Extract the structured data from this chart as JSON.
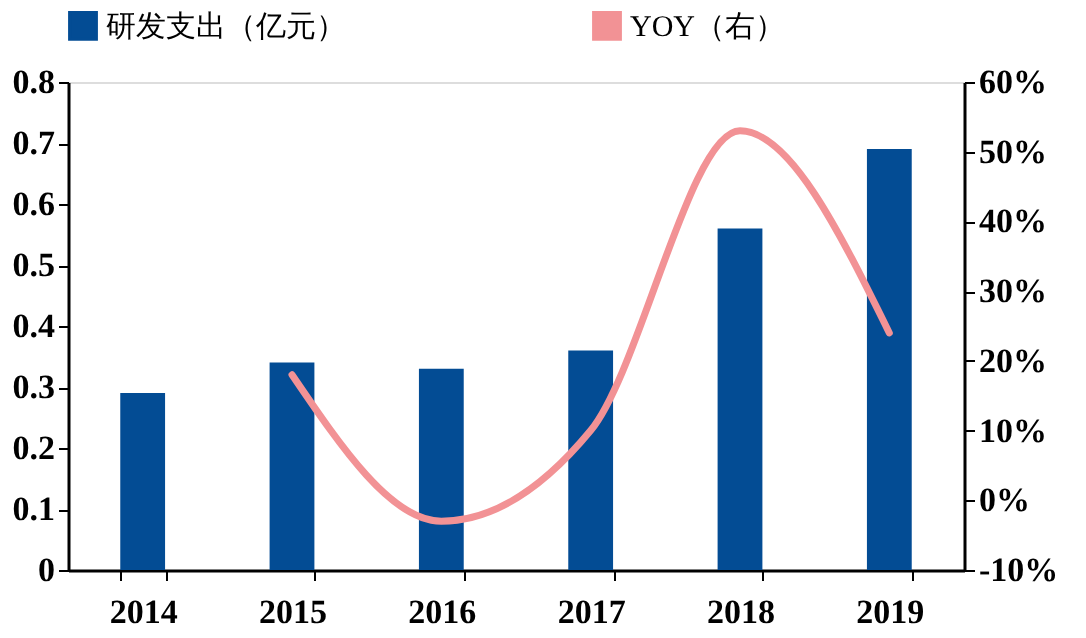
{
  "chart_data": {
    "type": "bar",
    "categories": [
      "2014",
      "2015",
      "2016",
      "2017",
      "2018",
      "2019"
    ],
    "series": [
      {
        "name": "研发支出（亿元）",
        "color": "#034c94",
        "values": [
          0.29,
          0.34,
          0.33,
          0.36,
          0.56,
          0.69
        ]
      },
      {
        "name": "YOY（右）",
        "type": "line",
        "axis": "y2",
        "color": "#f29295",
        "values": [
          null,
          18,
          -3,
          10,
          53,
          24
        ]
      }
    ],
    "ylim": [
      0,
      0.8
    ],
    "yticks": [
      0,
      0.1,
      0.2,
      0.3,
      0.4,
      0.5,
      0.6,
      0.7,
      0.8
    ],
    "y2lim": [
      -10,
      60
    ],
    "y2ticks": [
      {
        "value": -10,
        "label": "-10%"
      },
      {
        "value": 0,
        "label": "0%"
      },
      {
        "value": 10,
        "label": "10%"
      },
      {
        "value": 20,
        "label": "20%"
      },
      {
        "value": 30,
        "label": "30%"
      },
      {
        "value": 40,
        "label": "40%"
      },
      {
        "value": 50,
        "label": "50%"
      },
      {
        "value": 60,
        "label": "60%"
      }
    ],
    "legend": "top",
    "grid": false
  }
}
